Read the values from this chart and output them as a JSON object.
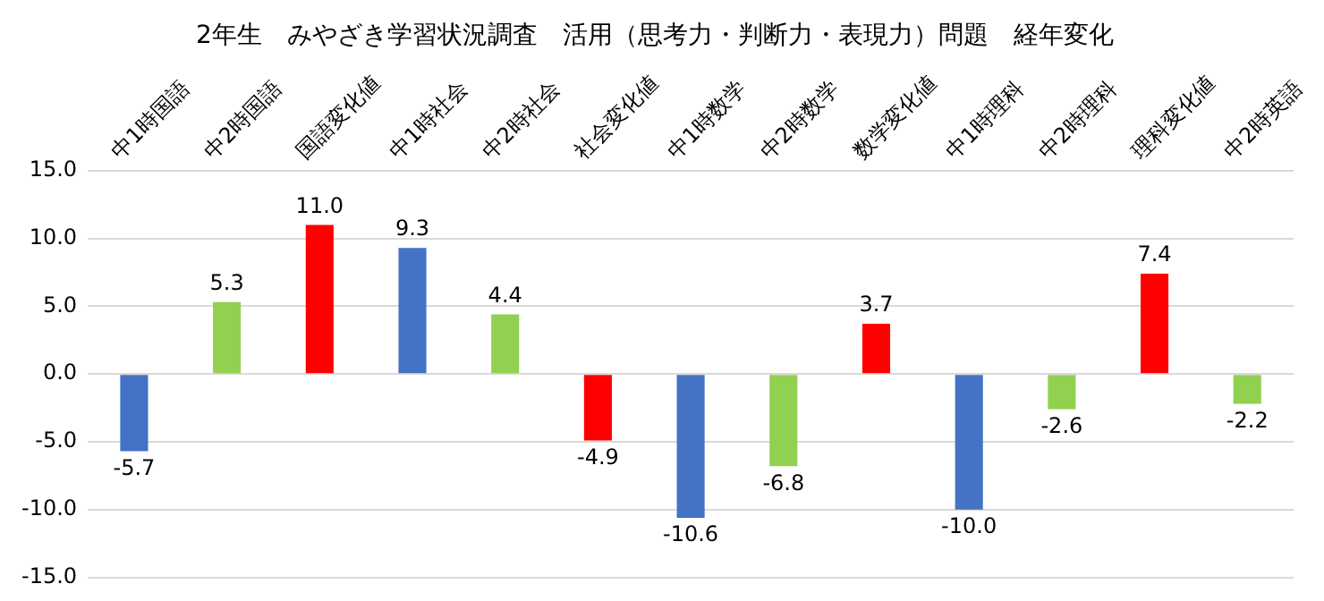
{
  "chart_data": {
    "type": "bar",
    "title": "2年生　みやざき学習状況調査　活用（思考力・判断力・表現力）問題　経年変化",
    "categories": [
      "中1時国語",
      "中2時国語",
      "国語変化値",
      "中1時社会",
      "中2時社会",
      "社会変化値",
      "中1時数学",
      "中2時数学",
      "数学変化値",
      "中1時理科",
      "中2時理科",
      "理科変化値",
      "中2時英語"
    ],
    "values": [
      -5.7,
      5.3,
      11.0,
      9.3,
      4.4,
      -4.9,
      -10.6,
      -6.8,
      3.7,
      -10.0,
      -2.6,
      7.4,
      -2.2
    ],
    "value_labels": [
      "-5.7",
      "5.3",
      "11.0",
      "9.3",
      "4.4",
      "-4.9",
      "-10.6",
      "-6.8",
      "3.7",
      "-10.0",
      "-2.6",
      "7.4",
      "-2.2"
    ],
    "colors": [
      "#4472c4",
      "#92d050",
      "#ff0000",
      "#4472c4",
      "#92d050",
      "#ff0000",
      "#4472c4",
      "#92d050",
      "#ff0000",
      "#4472c4",
      "#92d050",
      "#ff0000",
      "#92d050"
    ],
    "ylim": [
      -15,
      15
    ],
    "yticks": [
      {
        "value": -15,
        "label": "-15.0"
      },
      {
        "value": -10,
        "label": "-10.0"
      },
      {
        "value": -5,
        "label": "-5.0"
      },
      {
        "value": 0,
        "label": "0.0"
      },
      {
        "value": 5,
        "label": "5.0"
      },
      {
        "value": 10,
        "label": "10.0"
      },
      {
        "value": 15,
        "label": "15.0"
      }
    ],
    "grid": "y",
    "legend": false
  }
}
